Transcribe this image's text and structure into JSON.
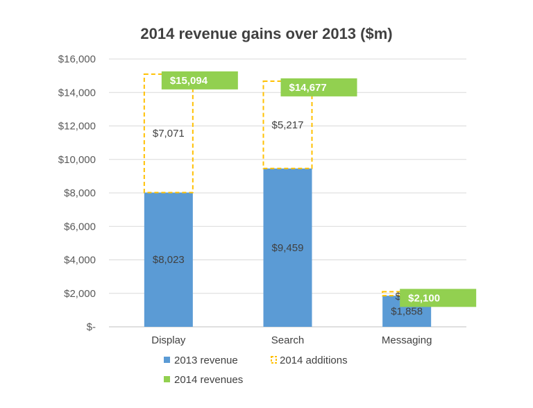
{
  "chart_data": {
    "type": "bar",
    "title": "2014 revenue gains over 2013 ($m)",
    "categories": [
      "Display",
      "Search",
      "Messaging"
    ],
    "series": [
      {
        "name": "2013 revenue",
        "values": [
          8023,
          9459,
          1858
        ],
        "labels": [
          "$8,023",
          "$9,459",
          "$1,858"
        ],
        "color": "#5B9BD5"
      },
      {
        "name": "2014 additions",
        "values": [
          7071,
          5217,
          241
        ],
        "labels": [
          "$7,071",
          "$5,217",
          "$241"
        ],
        "color": "#FFC000"
      },
      {
        "name": "2014 revenues",
        "values": [
          15094,
          14677,
          2100
        ],
        "labels": [
          "$15,094",
          "$14,677",
          "$2,100"
        ],
        "color": "#92D050"
      }
    ],
    "ylim": [
      0,
      16000
    ],
    "yticks": [
      0,
      2000,
      4000,
      6000,
      8000,
      10000,
      12000,
      14000,
      16000
    ],
    "ytick_labels": [
      "$-",
      "$2,000",
      "$4,000",
      "$6,000",
      "$8,000",
      "$10,000",
      "$12,000",
      "$14,000",
      "$16,000"
    ],
    "grid": true,
    "legend_position": "bottom"
  }
}
